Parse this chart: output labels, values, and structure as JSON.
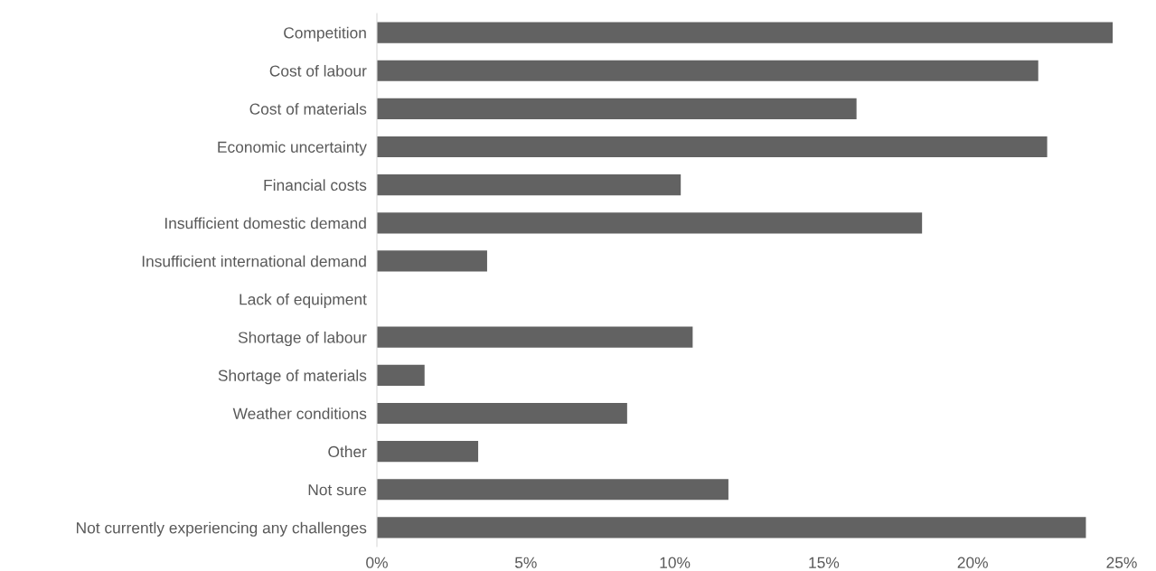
{
  "chart_data": {
    "type": "bar",
    "orientation": "horizontal",
    "categories": [
      "Competition",
      "Cost of labour",
      "Cost of materials",
      "Economic uncertainty",
      "Financial costs",
      "Insufficient domestic demand",
      "Insufficient international demand",
      "Lack of equipment",
      "Shortage of labour",
      "Shortage of materials",
      "Weather conditions",
      "Other",
      "Not sure",
      "Not currently experiencing any challenges"
    ],
    "values": [
      24.7,
      22.2,
      16.1,
      22.5,
      10.2,
      18.3,
      3.7,
      0,
      10.6,
      1.6,
      8.4,
      3.4,
      11.8,
      23.8
    ],
    "color": "#626262",
    "xlim": [
      0,
      25
    ],
    "xticks": [
      {
        "value": 0,
        "label": "0%"
      },
      {
        "value": 5,
        "label": "5%"
      },
      {
        "value": 10,
        "label": "10%"
      },
      {
        "value": 15,
        "label": "15%"
      },
      {
        "value": 20,
        "label": "20%"
      },
      {
        "value": 25,
        "label": "25%"
      }
    ],
    "grid": false,
    "legend": false
  }
}
